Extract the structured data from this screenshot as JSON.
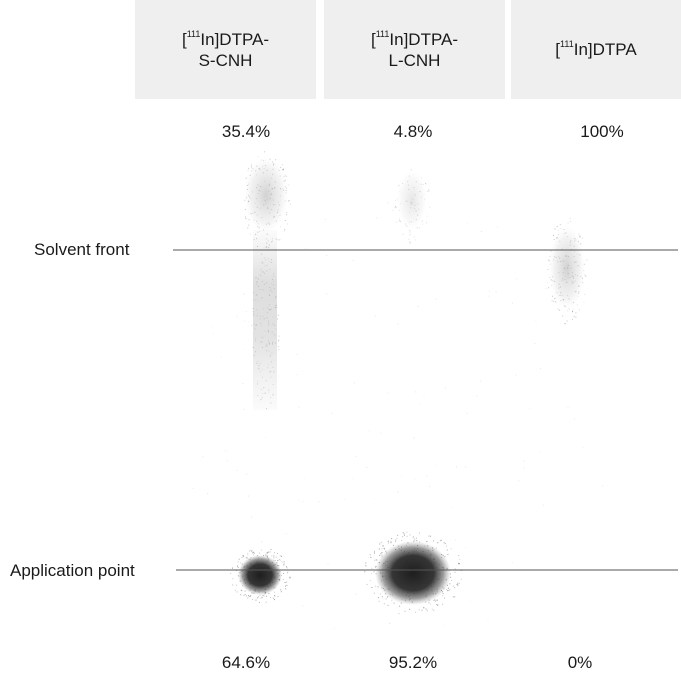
{
  "columns": [
    {
      "label_prefix": "[",
      "superscript": "111",
      "label_main": "In]DTPA-",
      "label_line2": "S-CNH",
      "top_value": "35.4%",
      "bottom_value": "64.6%"
    },
    {
      "label_prefix": "[",
      "superscript": "111",
      "label_main": "In]DTPA-",
      "label_line2": "L-CNH",
      "top_value": "4.8%",
      "bottom_value": "95.2%"
    },
    {
      "label_prefix": "[",
      "superscript": "111",
      "label_main": "In]DTPA",
      "label_line2": "",
      "top_value": "100%",
      "bottom_value": "0%"
    }
  ],
  "reference_lines": {
    "solvent_front": "Solvent front",
    "application_point": "Application point"
  },
  "colors": {
    "header_background": "#efefef",
    "line": "#555555",
    "spot": "#2b2b2b"
  }
}
